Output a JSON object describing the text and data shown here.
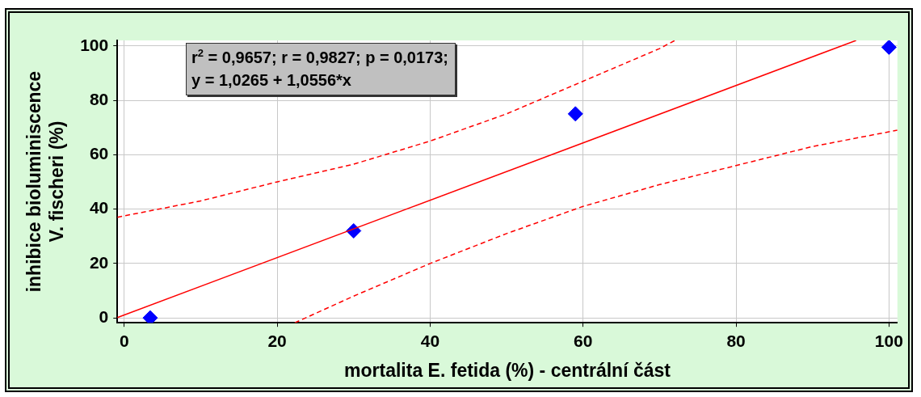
{
  "chart_data": {
    "type": "scatter",
    "xlabel": "mortalita E. fetida (%) - centrální část",
    "ylabel": "inhibice bioluminiscence\nV. fischeri (%)",
    "annotations": [
      "r$^{2}$ = 0,9657;  r = 0,9827; p = 0,0173;",
      "y = 1,0265 + 1,0556*x"
    ],
    "xlim": [
      -0.9,
      101.1
    ],
    "ylim": [
      -1.8,
      102
    ],
    "xticks": [
      0,
      20,
      40,
      60,
      80,
      100
    ],
    "yticks": [
      0,
      20,
      40,
      60,
      80,
      100
    ],
    "grid": true,
    "legend": false,
    "series": [
      {
        "type": "line",
        "color": "#ff0000",
        "line_style": "solid",
        "marker": "none",
        "x": [
          -0.9,
          95.7
        ],
        "values": [
          0.1,
          102
        ]
      },
      {
        "type": "line",
        "color": "#ff0000",
        "line_style": "dashed",
        "marker": "none",
        "x": [
          -0.9,
          10,
          20,
          30,
          40,
          50,
          60,
          70,
          72
        ],
        "values": [
          37,
          43,
          50,
          56.5,
          65,
          75,
          87,
          99,
          102
        ]
      },
      {
        "type": "line",
        "color": "#ff0000",
        "line_style": "dashed",
        "marker": "none",
        "x": [
          22.3,
          30,
          40,
          50,
          60,
          70,
          80,
          90,
          101.1
        ],
        "values": [
          -1.8,
          8,
          20,
          31,
          41,
          49,
          56,
          63,
          69
        ]
      },
      {
        "type": "scatter",
        "color": "#0000ff",
        "marker": "diamond",
        "x": [
          3.4,
          30,
          59,
          100
        ],
        "values": [
          0,
          32,
          75,
          99.5
        ]
      }
    ]
  }
}
